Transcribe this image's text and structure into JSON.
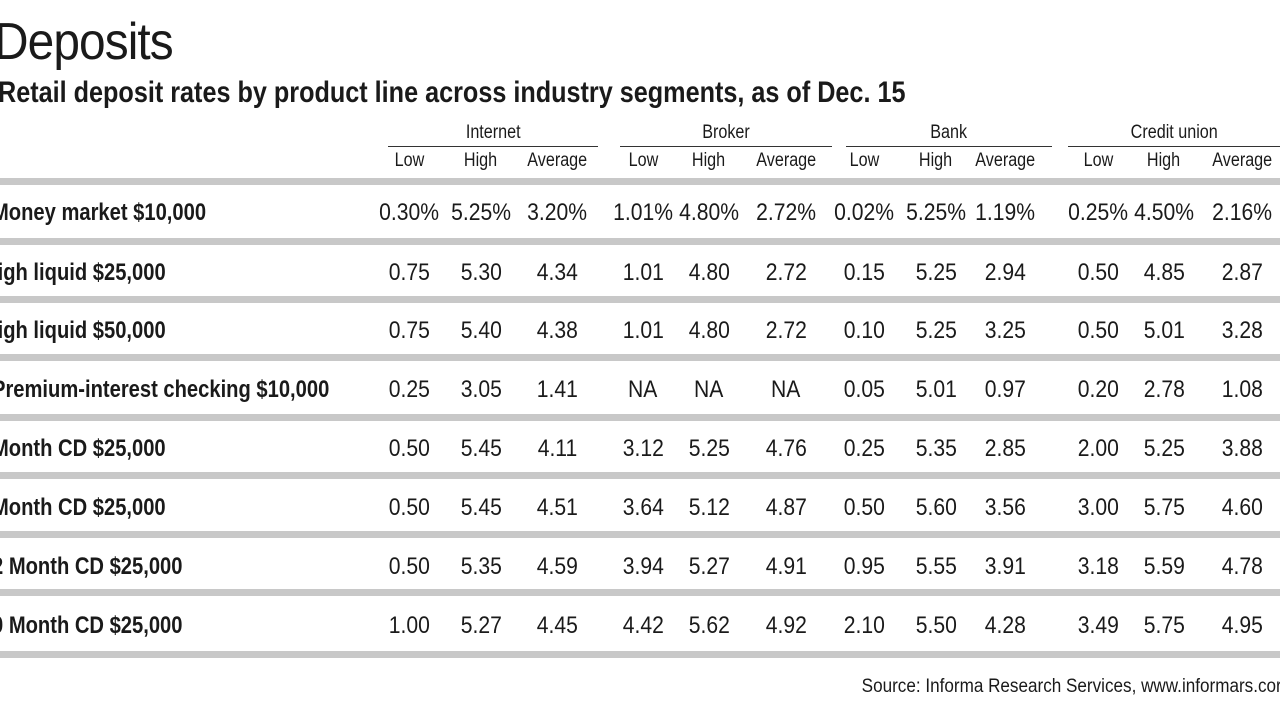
{
  "chart_data": {
    "type": "table",
    "title": "Deposits",
    "subtitle": "Retail deposit rates by product line across industry segments, as of Dec. 15",
    "segments": [
      "Internet",
      "Broker",
      "Bank",
      "Credit union"
    ],
    "columns": [
      "Low",
      "High",
      "Average"
    ],
    "rows": [
      {
        "label": "Money market $10,000",
        "values": [
          "0.30%",
          "5.25%",
          "3.20%",
          "1.01%",
          "4.80%",
          "2.72%",
          "0.02%",
          "5.25%",
          "1.19%",
          "0.25%",
          "4.50%",
          "2.16%"
        ]
      },
      {
        "label": "ligh liquid $25,000",
        "values": [
          "0.75",
          "5.30",
          "4.34",
          "1.01",
          "4.80",
          "2.72",
          "0.15",
          "5.25",
          "2.94",
          "0.50",
          "4.85",
          "2.87"
        ]
      },
      {
        "label": "ligh liquid $50,000",
        "values": [
          "0.75",
          "5.40",
          "4.38",
          "1.01",
          "4.80",
          "2.72",
          "0.10",
          "5.25",
          "3.25",
          "0.50",
          "5.01",
          "3.28"
        ]
      },
      {
        "label": "Premium-interest checking $10,000",
        "values": [
          "0.25",
          "3.05",
          "1.41",
          "NA",
          "NA",
          "NA",
          "0.05",
          "5.01",
          "0.97",
          "0.20",
          "2.78",
          "1.08"
        ]
      },
      {
        "label": "Month CD $25,000",
        "values": [
          "0.50",
          "5.45",
          "4.11",
          "3.12",
          "5.25",
          "4.76",
          "0.25",
          "5.35",
          "2.85",
          "2.00",
          "5.25",
          "3.88"
        ]
      },
      {
        "label": "Month CD $25,000",
        "values": [
          "0.50",
          "5.45",
          "4.51",
          "3.64",
          "5.12",
          "4.87",
          "0.50",
          "5.60",
          "3.56",
          "3.00",
          "5.75",
          "4.60"
        ]
      },
      {
        "label": "2 Month CD $25,000",
        "values": [
          "0.50",
          "5.35",
          "4.59",
          "3.94",
          "5.27",
          "4.91",
          "0.95",
          "5.55",
          "3.91",
          "3.18",
          "5.59",
          "4.78"
        ]
      },
      {
        "label": "0 Month CD $25,000",
        "values": [
          "1.00",
          "5.27",
          "4.45",
          "4.42",
          "5.62",
          "4.92",
          "2.10",
          "5.50",
          "4.28",
          "3.49",
          "5.75",
          "4.95"
        ]
      }
    ],
    "source": "Source: Informa Research Services, www.informars.cor"
  }
}
